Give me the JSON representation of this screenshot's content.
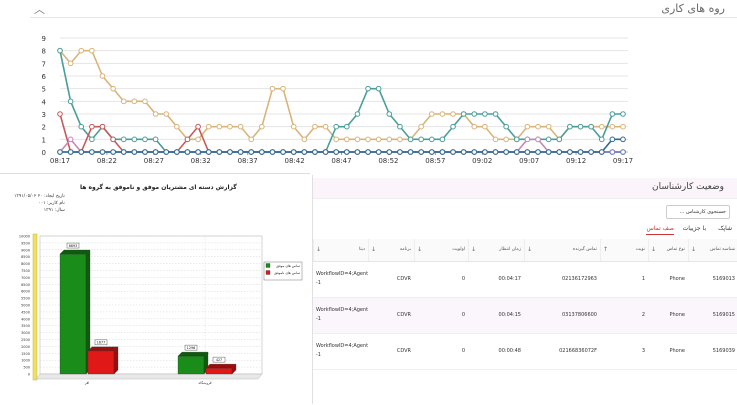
{
  "top_panel": {
    "title": "روه های کاری",
    "chevron_icon": "chevron-up-icon"
  },
  "line_chart": {
    "type": "line",
    "x_labels": [
      "08:17",
      "08:22",
      "08:27",
      "08:32",
      "08:37",
      "08:42",
      "08:47",
      "08:52",
      "08:57",
      "09:02",
      "09:07",
      "09:12",
      "09:17"
    ],
    "y_ticks": [
      0,
      1,
      2,
      3,
      4,
      5,
      6,
      7,
      8,
      9
    ],
    "ylim": [
      0,
      9
    ],
    "grid": true,
    "series": [
      {
        "color": "#d9b47a",
        "values": [
          8,
          7,
          8,
          8,
          6,
          5,
          4,
          4,
          4,
          3,
          3,
          2,
          1,
          1,
          2,
          2,
          2,
          2,
          1,
          2,
          5,
          5,
          2,
          1,
          2,
          2,
          1,
          1,
          1,
          1,
          1,
          1,
          1,
          1,
          2,
          3,
          3,
          3,
          3,
          2,
          2,
          1,
          1,
          1,
          2,
          2,
          2,
          1,
          2,
          2,
          2,
          2,
          2,
          2
        ]
      },
      {
        "color": "#4a9e9a",
        "values": [
          8,
          4,
          2,
          1,
          2,
          1,
          1,
          1,
          1,
          1,
          0,
          0,
          0,
          0,
          0,
          0,
          0,
          0,
          0,
          0,
          0,
          0,
          0,
          0,
          0,
          0,
          2,
          2,
          3,
          5,
          5,
          3,
          2,
          1,
          1,
          1,
          1,
          2,
          3,
          3,
          3,
          3,
          2,
          1,
          1,
          1,
          1,
          1,
          2,
          2,
          2,
          1,
          3,
          3
        ]
      },
      {
        "color": "#c65a5a",
        "values": [
          3,
          0,
          0,
          2,
          2,
          1,
          0,
          0,
          0,
          0,
          0,
          0,
          1,
          2,
          0,
          0,
          0,
          0,
          0,
          0,
          0,
          0,
          0,
          0,
          0,
          0,
          0,
          0,
          0,
          0,
          0,
          0,
          0,
          0,
          0,
          0,
          0,
          0,
          0,
          0,
          0,
          0,
          0,
          0,
          0,
          0,
          0,
          0,
          0,
          0,
          0,
          0,
          0,
          0
        ]
      },
      {
        "color": "#c986b9",
        "values": [
          0,
          1,
          0,
          0,
          0,
          0,
          0,
          0,
          0,
          0,
          0,
          0,
          0,
          0,
          0,
          0,
          0,
          0,
          0,
          0,
          0,
          0,
          0,
          0,
          0,
          0,
          0,
          0,
          0,
          0,
          0,
          0,
          0,
          0,
          0,
          0,
          0,
          0,
          0,
          0,
          0,
          0,
          0,
          0,
          1,
          1,
          0,
          0,
          0,
          0,
          0,
          0,
          0,
          0
        ]
      },
      {
        "color": "#6b7fc0",
        "values": [
          0,
          0,
          0,
          0,
          0,
          0,
          0,
          0,
          0,
          0,
          0,
          0,
          0,
          0,
          0,
          0,
          0,
          0,
          0,
          0,
          0,
          0,
          0,
          0,
          0,
          0,
          0,
          0,
          0,
          0,
          0,
          0,
          0,
          0,
          0,
          0,
          0,
          0,
          0,
          0,
          0,
          0,
          0,
          0,
          0,
          0,
          0,
          0,
          0,
          0,
          0,
          0,
          0,
          0
        ]
      },
      {
        "color": "#2d6b8f",
        "values": [
          0,
          0,
          0,
          0,
          0,
          0,
          0,
          0,
          0,
          0,
          0,
          0,
          0,
          0,
          0,
          0,
          0,
          0,
          0,
          0,
          0,
          0,
          0,
          0,
          0,
          0,
          0,
          0,
          0,
          0,
          0,
          0,
          0,
          0,
          0,
          0,
          0,
          0,
          0,
          0,
          0,
          0,
          0,
          0,
          0,
          0,
          0,
          0,
          0,
          0,
          0,
          0,
          1,
          1
        ]
      }
    ]
  },
  "report": {
    "title": "گزارش دسته ای مشتریان موفق و ناموفق به گروه ها",
    "meta_line_1": "تاریخ ایجاد: ۲۰ ۱۳۹۱/۰۵/۰۲",
    "meta_line_2": "نام کاربر: ۰۰۱",
    "meta_line_3": "سال: ۱۳۹۱"
  },
  "bar_chart": {
    "type": "bar",
    "categories": [
      "افر",
      "فروشگاه"
    ],
    "series": [
      {
        "name": "تماس های موفق",
        "color": "#1a8c1a",
        "values": [
          8693,
          1296
        ]
      },
      {
        "name": "تماس های ناموفق",
        "color": "#e01818",
        "values": [
          1677,
          427
        ]
      }
    ],
    "value_labels": [
      "8693",
      "1677",
      "1296",
      "427"
    ],
    "ylim": [
      0,
      10000
    ],
    "y_ticks": [
      "0",
      "500",
      "1000",
      "1500",
      "2000",
      "2500",
      "3000",
      "3500",
      "4000",
      "4500",
      "5000",
      "5500",
      "6000",
      "6500",
      "7000",
      "7500",
      "8000",
      "8500",
      "9000",
      "9500",
      "10000"
    ],
    "legend": "top-right",
    "grid": true
  },
  "right_panel": {
    "title": "وضعیت کارشناسان",
    "search_placeholder": "جستجوی کارشناس ...",
    "tabs": [
      "شاپک",
      "با جزییات",
      "صف تماس"
    ],
    "table": {
      "headers": [
        "شناسه تماس",
        "نوع تماس",
        "نوبت",
        "تماس گیرنده",
        "زمان انتظار",
        "اولویت",
        "برنامه",
        "دیتا"
      ],
      "rows": [
        {
          "id": "5169013",
          "type": "Phone",
          "turn": "1",
          "caller": "02136172963",
          "wait": "00:04:17",
          "priority": "0",
          "program": "CDVR",
          "data": "WorkflowID=4;AgentID=-1;WorkgroupID=8;AAN -1"
        },
        {
          "id": "5169015",
          "type": "Phone",
          "turn": "2",
          "caller": "03137806600",
          "wait": "00:04:15",
          "priority": "0",
          "program": "CDVR",
          "data": "WorkflowID=4;AgentID=-1;WorkgroupID=8;AAN -1"
        },
        {
          "id": "5169039",
          "type": "Phone",
          "turn": "3",
          "caller": "02166836072F",
          "wait": "00:00:48",
          "priority": "0",
          "program": "CDVR",
          "data": "WorkflowID=4;AgentID=-1;WorkgroupID=8;AAN -1"
        }
      ]
    }
  }
}
